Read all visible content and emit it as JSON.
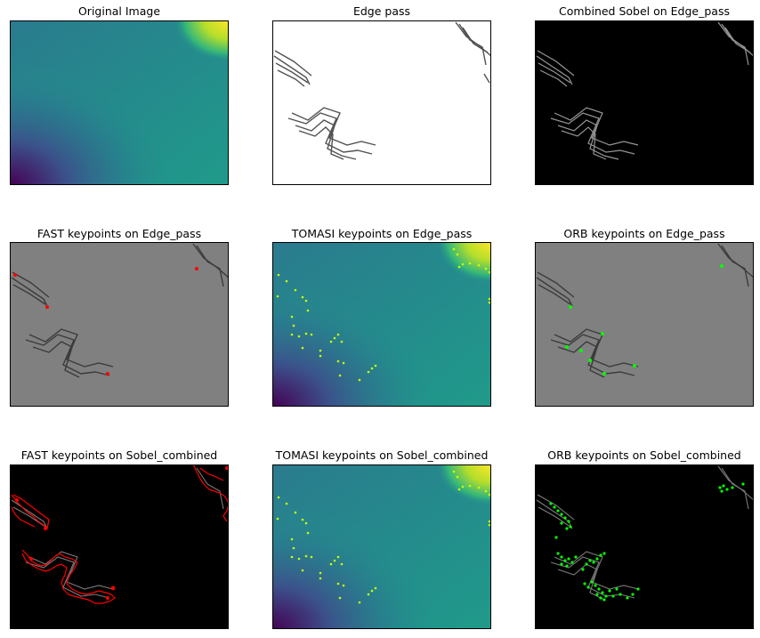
{
  "titles": {
    "p1": "Original Image",
    "p2": "Edge pass",
    "p3": "Combined Sobel on Edge_pass",
    "p4": "FAST keypoints on Edge_pass",
    "p5": "TOMASI keypoints on Edge_pass",
    "p6": "ORB keypoints on Edge_pass",
    "p7": "FAST keypoints on Sobel_combined",
    "p8": "TOMASI keypoints on Sobel_combined",
    "p9": "ORB keypoints on Sobel_combined"
  },
  "colors": {
    "viridis_teal": "#21918c",
    "viridis_dark": "#440154",
    "viridis_yellow": "#fde725",
    "gray_bg": "#808080",
    "fast": "#ff0000",
    "tomasi": "#c8ff00",
    "orb": "#00ff00"
  }
}
